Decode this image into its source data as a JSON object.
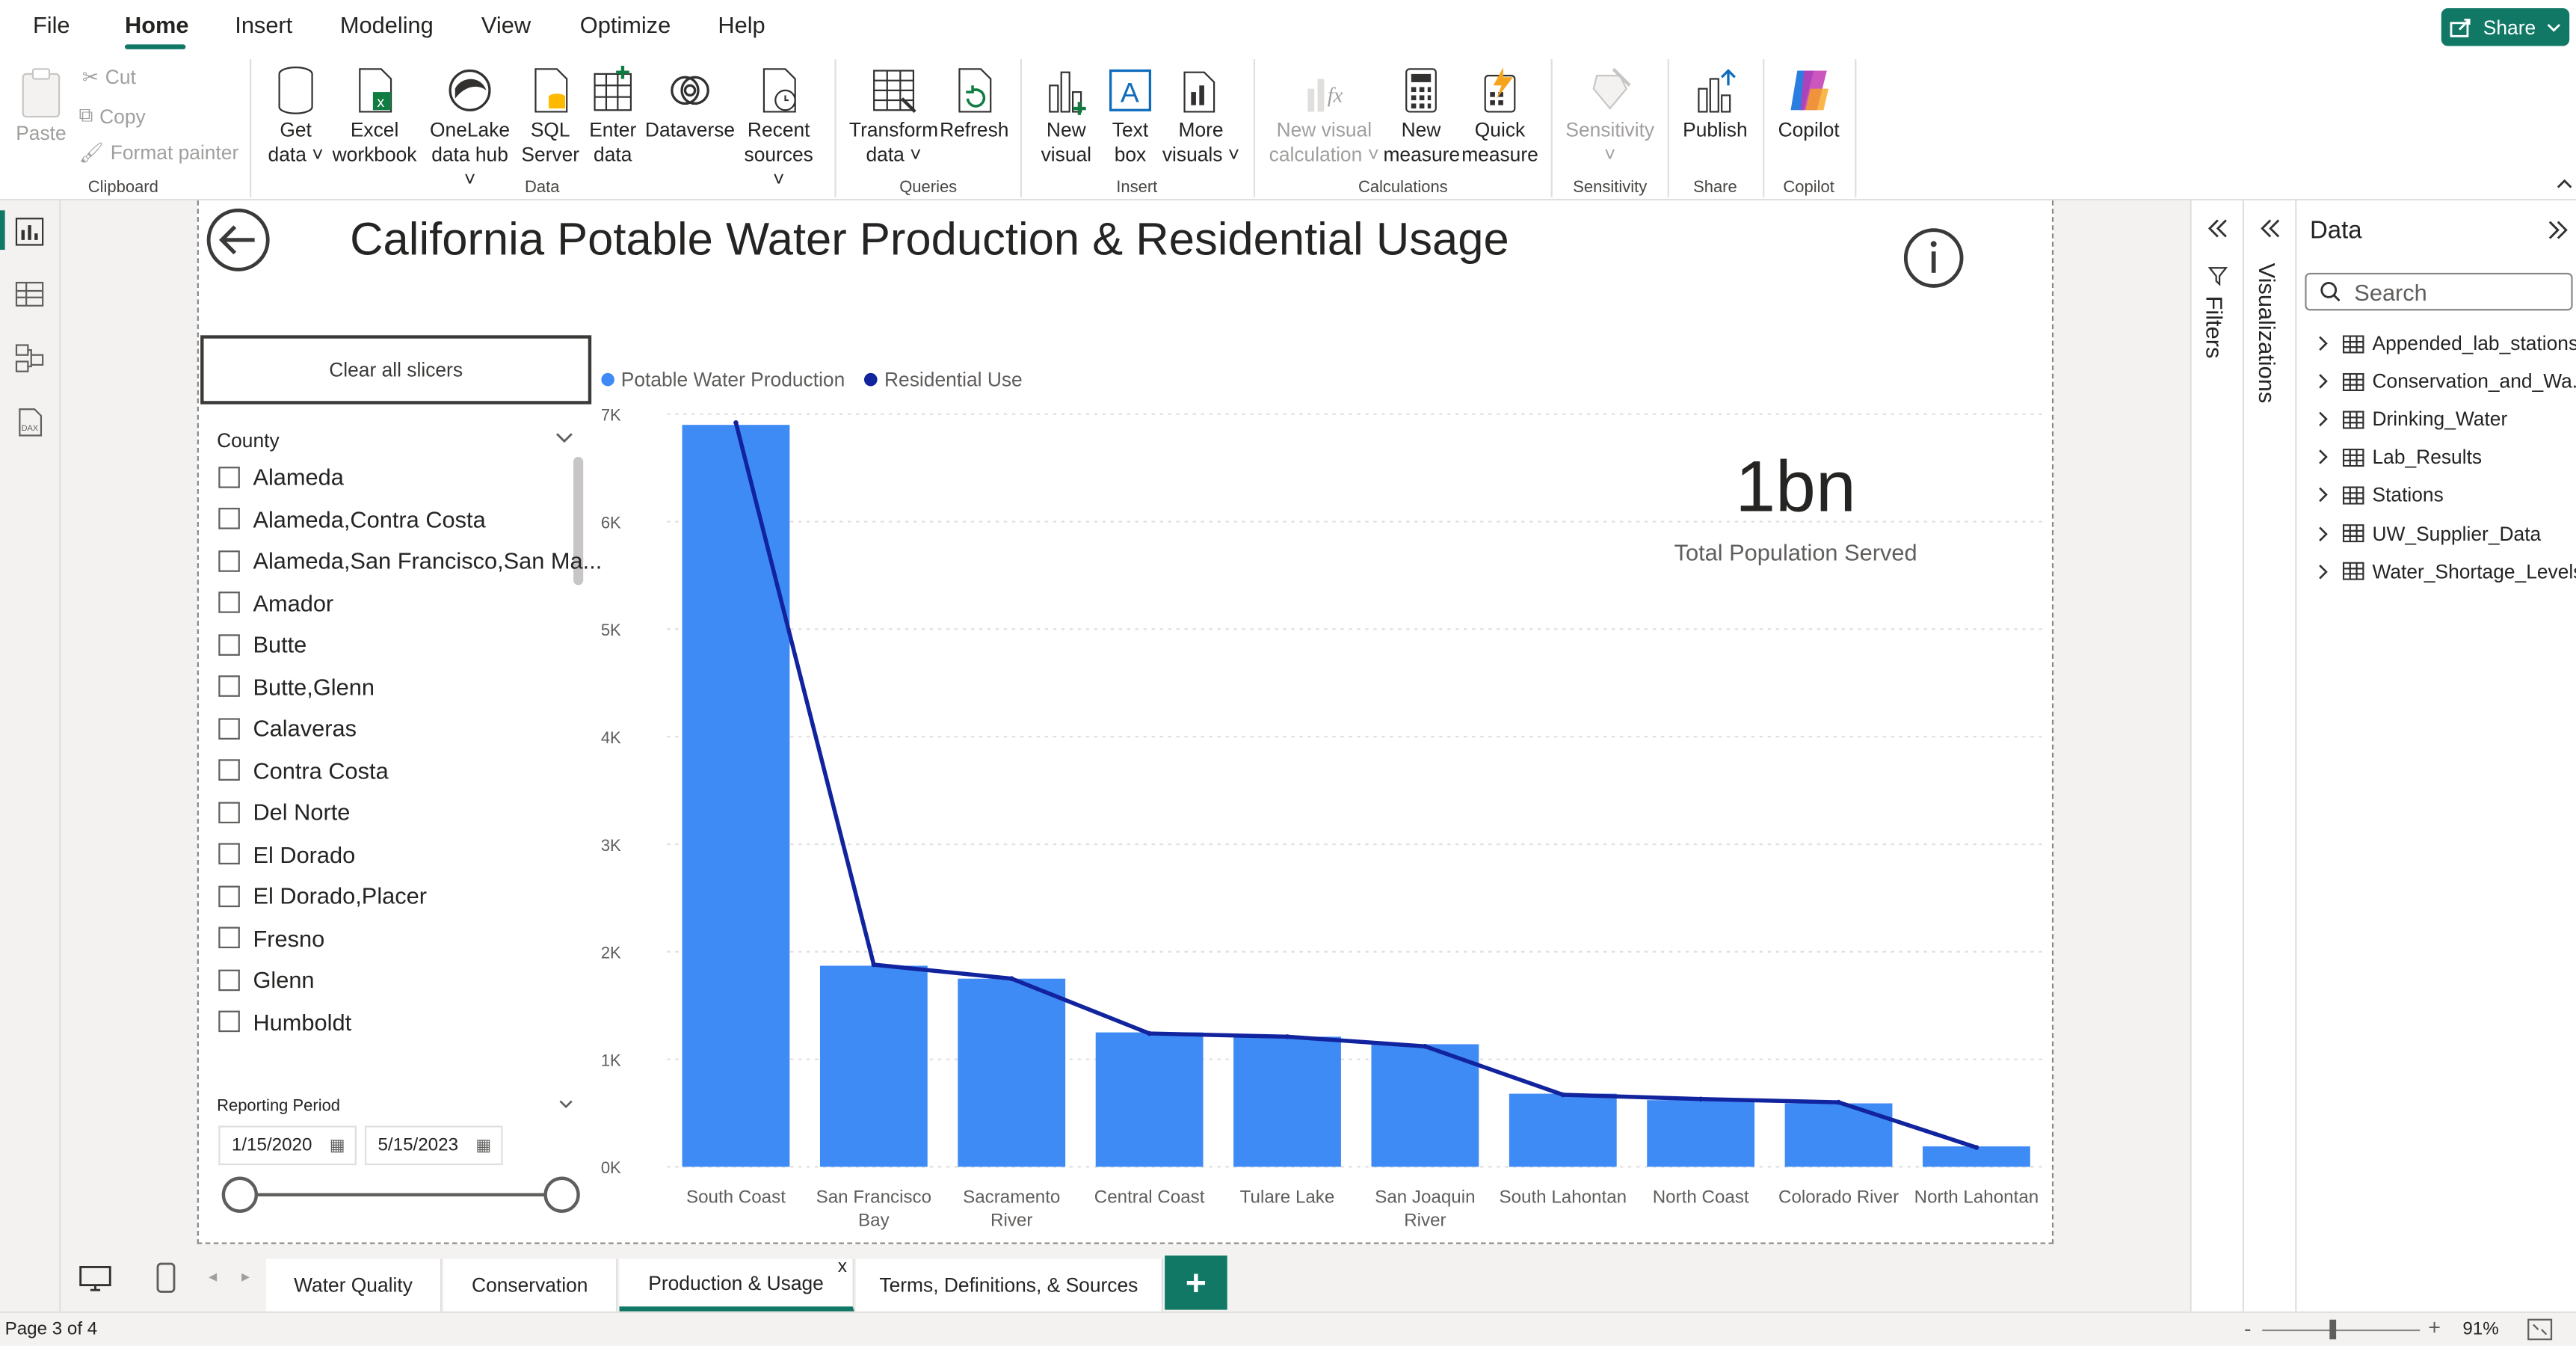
{
  "menu": {
    "tabs": [
      {
        "label": "File"
      },
      {
        "label": "Home"
      },
      {
        "label": "Insert"
      },
      {
        "label": "Modeling"
      },
      {
        "label": "View"
      },
      {
        "label": "Optimize"
      },
      {
        "label": "Help"
      }
    ],
    "active_tab": "Home",
    "share_label": "Share",
    "accent_color": "#117865"
  },
  "ribbon": {
    "clipboard": {
      "paste": "Paste",
      "cut": "Cut",
      "copy": "Copy",
      "format_painter": "Format painter",
      "group": "Clipboard"
    },
    "data": {
      "get_data": [
        "Get",
        "data"
      ],
      "excel": [
        "Excel",
        "workbook"
      ],
      "onelake": [
        "OneLake",
        "data hub"
      ],
      "sql": [
        "SQL",
        "Server"
      ],
      "enter": [
        "Enter",
        "data"
      ],
      "dataverse": "Dataverse",
      "recent": [
        "Recent",
        "sources"
      ],
      "group": "Data"
    },
    "queries": {
      "transform": [
        "Transform",
        "data"
      ],
      "refresh": "Refresh",
      "group": "Queries"
    },
    "insert": {
      "new_visual": [
        "New",
        "visual"
      ],
      "text_box": [
        "Text",
        "box"
      ],
      "more_visuals": [
        "More",
        "visuals"
      ],
      "group": "Insert"
    },
    "calculations": {
      "new_visual_calc": [
        "New visual",
        "calculation"
      ],
      "new_measure": [
        "New",
        "measure"
      ],
      "quick_measure": [
        "Quick",
        "measure"
      ],
      "group": "Calculations"
    },
    "sensitivity": {
      "label": "Sensitivity",
      "group": "Sensitivity"
    },
    "share": {
      "publish": "Publish",
      "group": "Share"
    },
    "copilot": {
      "label": "Copilot",
      "group": "Copilot"
    }
  },
  "report": {
    "title": "California Potable Water Production & Residential Usage",
    "clear_slicers": "Clear all slicers",
    "county_slicer": {
      "label": "County",
      "items": [
        "Alameda",
        "Alameda,Contra Costa",
        "Alameda,San Francisco,San Ma...",
        "Amador",
        "Butte",
        "Butte,Glenn",
        "Calaveras",
        "Contra Costa",
        "Del Norte",
        "El Dorado",
        "El Dorado,Placer",
        "Fresno",
        "Glenn",
        "Humboldt"
      ]
    },
    "reporting_period": {
      "label": "Reporting Period",
      "start": "1/15/2020",
      "end": "5/15/2023"
    },
    "card": {
      "value": "1bn",
      "label": "Total Population Served"
    }
  },
  "chart_data": {
    "type": "bar",
    "categories": [
      "South Coast",
      "San Francisco Bay",
      "Sacramento River",
      "Central Coast",
      "Tulare Lake",
      "San Joaquin River",
      "South Lahontan",
      "North Coast",
      "Colorado River",
      "North Lahontan"
    ],
    "category_labels": [
      [
        "South Coast"
      ],
      [
        "San Francisco",
        "Bay"
      ],
      [
        "Sacramento",
        "River"
      ],
      [
        "Central Coast"
      ],
      [
        "Tulare Lake"
      ],
      [
        "San Joaquin",
        "River"
      ],
      [
        "South Lahontan"
      ],
      [
        "North Coast"
      ],
      [
        "Colorado River"
      ],
      [
        "North Lahontan"
      ]
    ],
    "series": [
      {
        "name": "Potable Water Production",
        "type": "bar",
        "color": "#3f8bf5",
        "values": [
          6900,
          1870,
          1750,
          1250,
          1210,
          1140,
          680,
          620,
          590,
          190
        ]
      },
      {
        "name": "Residential Use",
        "type": "line",
        "color": "#12239e",
        "values": [
          6920,
          1880,
          1750,
          1240,
          1210,
          1120,
          670,
          630,
          600,
          180
        ]
      }
    ],
    "yticks": [
      "0K",
      "1K",
      "2K",
      "3K",
      "4K",
      "5K",
      "6K",
      "7K"
    ],
    "ylim": [
      0,
      7000
    ],
    "grid": true,
    "legend": "top-left"
  },
  "data_pane": {
    "title": "Data",
    "search_placeholder": "Search",
    "tables": [
      "Appended_lab_stations",
      "Conservation_and_Wa...",
      "Drinking_Water",
      "Lab_Results",
      "Stations",
      "UW_Supplier_Data",
      "Water_Shortage_Levels"
    ]
  },
  "side_panes": {
    "filters": "Filters",
    "visualizations": "Visualizations"
  },
  "page_tabs": [
    {
      "label": "Water Quality"
    },
    {
      "label": "Conservation"
    },
    {
      "label": "Production & Usage"
    },
    {
      "label": "Terms, Definitions, & Sources"
    }
  ],
  "active_page_tab": "Production & Usage",
  "status": {
    "page": "Page 3 of 4",
    "zoom": "91%"
  }
}
